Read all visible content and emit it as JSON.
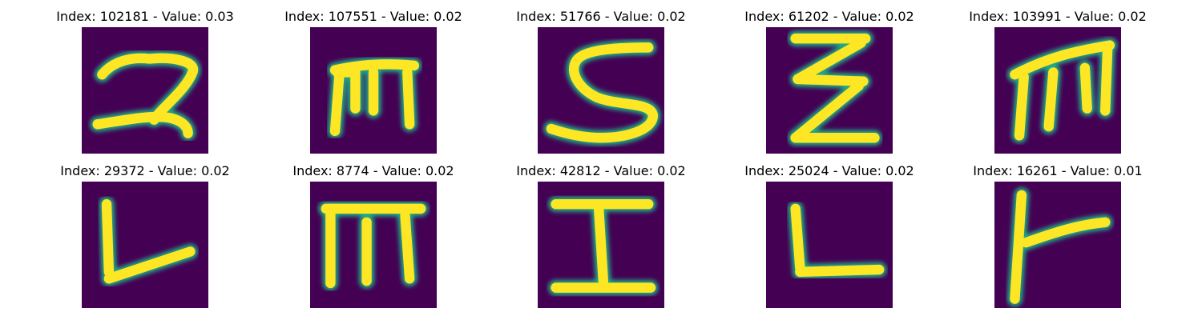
{
  "colors": {
    "background": "#440154",
    "foreground": "#fde725",
    "edge": "#22a884"
  },
  "samples": [
    {
      "index": "102181",
      "value": "0.03",
      "title": "Index: 102181 - Value: 0.03",
      "glyph": "2"
    },
    {
      "index": "107551",
      "value": "0.02",
      "title": "Index: 107551 - Value: 0.02",
      "glyph": "m"
    },
    {
      "index": "51766",
      "value": "0.02",
      "title": "Index: 51766 - Value: 0.02",
      "glyph": "S"
    },
    {
      "index": "61202",
      "value": "0.02",
      "title": "Index: 61202 - Value: 0.02",
      "glyph": "Z"
    },
    {
      "index": "103991",
      "value": "0.02",
      "title": "Index: 103991 - Value: 0.02",
      "glyph": "m"
    },
    {
      "index": "29372",
      "value": "0.02",
      "title": "Index: 29372 - Value: 0.02",
      "glyph": "L"
    },
    {
      "index": "8774",
      "value": "0.02",
      "title": "Index: 8774 - Value: 0.02",
      "glyph": "m"
    },
    {
      "index": "42812",
      "value": "0.02",
      "title": "Index: 42812 - Value: 0.02",
      "glyph": "I"
    },
    {
      "index": "25024",
      "value": "0.02",
      "title": "Index: 25024 - Value: 0.02",
      "glyph": "L"
    },
    {
      "index": "16261",
      "value": "0.01",
      "title": "Index: 16261 - Value: 0.01",
      "glyph": "t"
    }
  ]
}
